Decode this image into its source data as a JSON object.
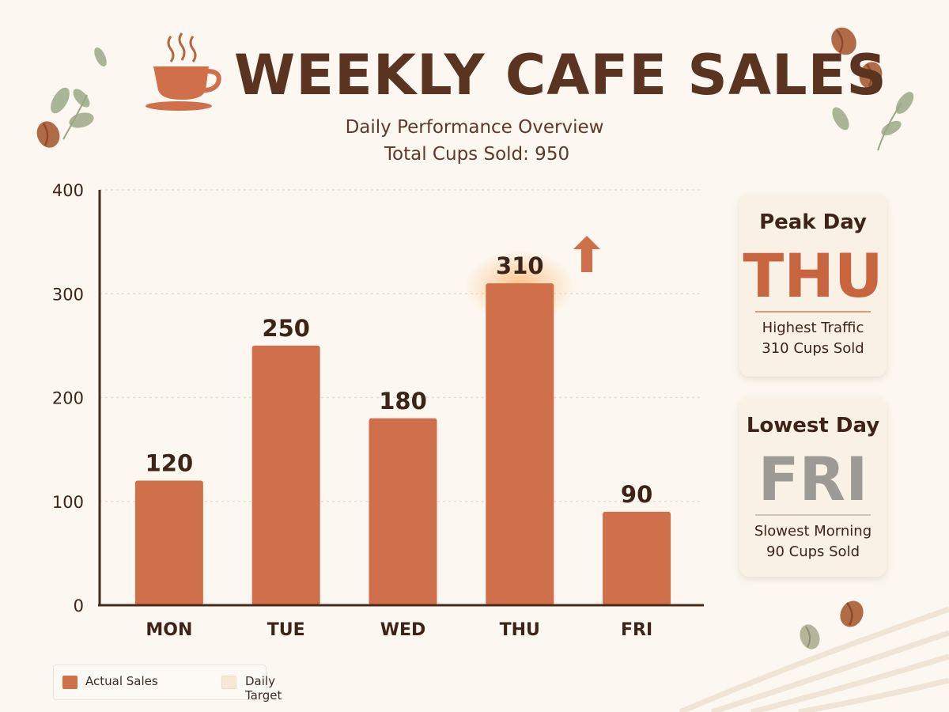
{
  "header": {
    "title": "WEEKLY CAFE SALES",
    "subtitle": "Daily Performance Overview",
    "total_line": "Total Cups Sold: 950"
  },
  "chart_data": {
    "type": "bar",
    "categories": [
      "MON",
      "TUE",
      "WED",
      "THU",
      "FRI"
    ],
    "series": [
      {
        "name": "Actual Sales",
        "values": [
          120,
          250,
          180,
          310,
          90
        ]
      }
    ],
    "data_labels": [
      "120",
      "250",
      "180",
      "310",
      "90"
    ],
    "title": "WEEKLY CAFE SALES",
    "subtitle": "Daily Performance Overview",
    "xlabel": "",
    "ylabel": "",
    "ylim": [
      0,
      400
    ],
    "yticks": [
      0,
      100,
      200,
      300,
      400
    ],
    "grid": true,
    "highlight": {
      "category": "THU",
      "marker": "up-arrow-icon"
    },
    "legend": {
      "placement": "bottom-left",
      "entries": [
        "Actual Sales",
        "Daily Target"
      ]
    }
  },
  "cards": {
    "peak": {
      "heading": "Peak Day",
      "day": "THU",
      "line1": "Highest Traffic",
      "line2": "310 Cups Sold"
    },
    "lowest": {
      "heading": "Lowest Day",
      "day": "FRI",
      "line1": "Slowest Morning",
      "line2": "90 Cups Sold"
    }
  },
  "colors": {
    "bar": "#d0704a",
    "highlight_glow": "#ffb366",
    "axis": "#4a2a1c",
    "grid": "#e6ddd2",
    "target": "#f7e8d4",
    "background": "#fcf8f1"
  },
  "icons": {
    "cup": "coffee-cup-icon",
    "arrow": "up-arrow-icon",
    "bean": "coffee-bean-icon",
    "leaf": "leaf-icon"
  }
}
